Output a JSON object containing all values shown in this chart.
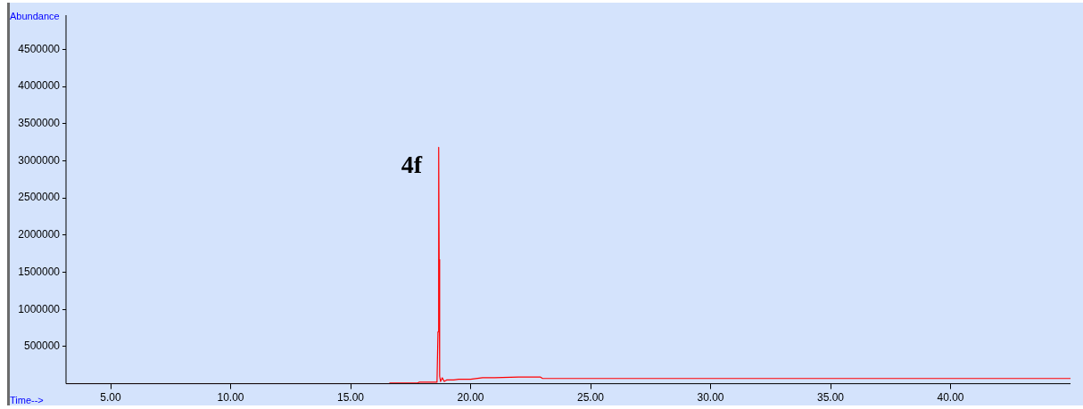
{
  "chart_data": {
    "type": "line",
    "xlabel": "Time-->",
    "ylabel": "Abundance",
    "annotations": [
      "4f"
    ],
    "xlim": [
      3.14,
      45
    ],
    "ylim": [
      0,
      4960000
    ],
    "xticks": [
      {
        "value": 5,
        "label": "5.00"
      },
      {
        "value": 10,
        "label": "10.00"
      },
      {
        "value": 15,
        "label": "15.00"
      },
      {
        "value": 20,
        "label": "20.00"
      },
      {
        "value": 25,
        "label": "25.00"
      },
      {
        "value": 30,
        "label": "30.00"
      },
      {
        "value": 35,
        "label": "35.00"
      },
      {
        "value": 40,
        "label": "40.00"
      }
    ],
    "yticks": [
      500000,
      1000000,
      1500000,
      2000000,
      2500000,
      3000000,
      3500000,
      4000000,
      4500000
    ],
    "grid": false,
    "legend": false,
    "marker": "none",
    "line_style": "solid",
    "series": [
      {
        "color": "#ff0000",
        "x": [
          3.14,
          16.6,
          16.65,
          17.8,
          17.85,
          18.6,
          18.64,
          18.66,
          18.67,
          18.69,
          18.71,
          18.75,
          18.82,
          18.9,
          19.0,
          19.3,
          19.5,
          20,
          20.5,
          21,
          22,
          22.9,
          23,
          30,
          45
        ],
        "values": [
          0,
          0,
          10000,
          10000,
          20000,
          20000,
          700000,
          700000,
          3180000,
          1670000,
          100000,
          30000,
          80000,
          30000,
          50000,
          50000,
          60000,
          60000,
          80000,
          80000,
          90000,
          90000,
          70000,
          70000,
          70000
        ]
      }
    ]
  }
}
